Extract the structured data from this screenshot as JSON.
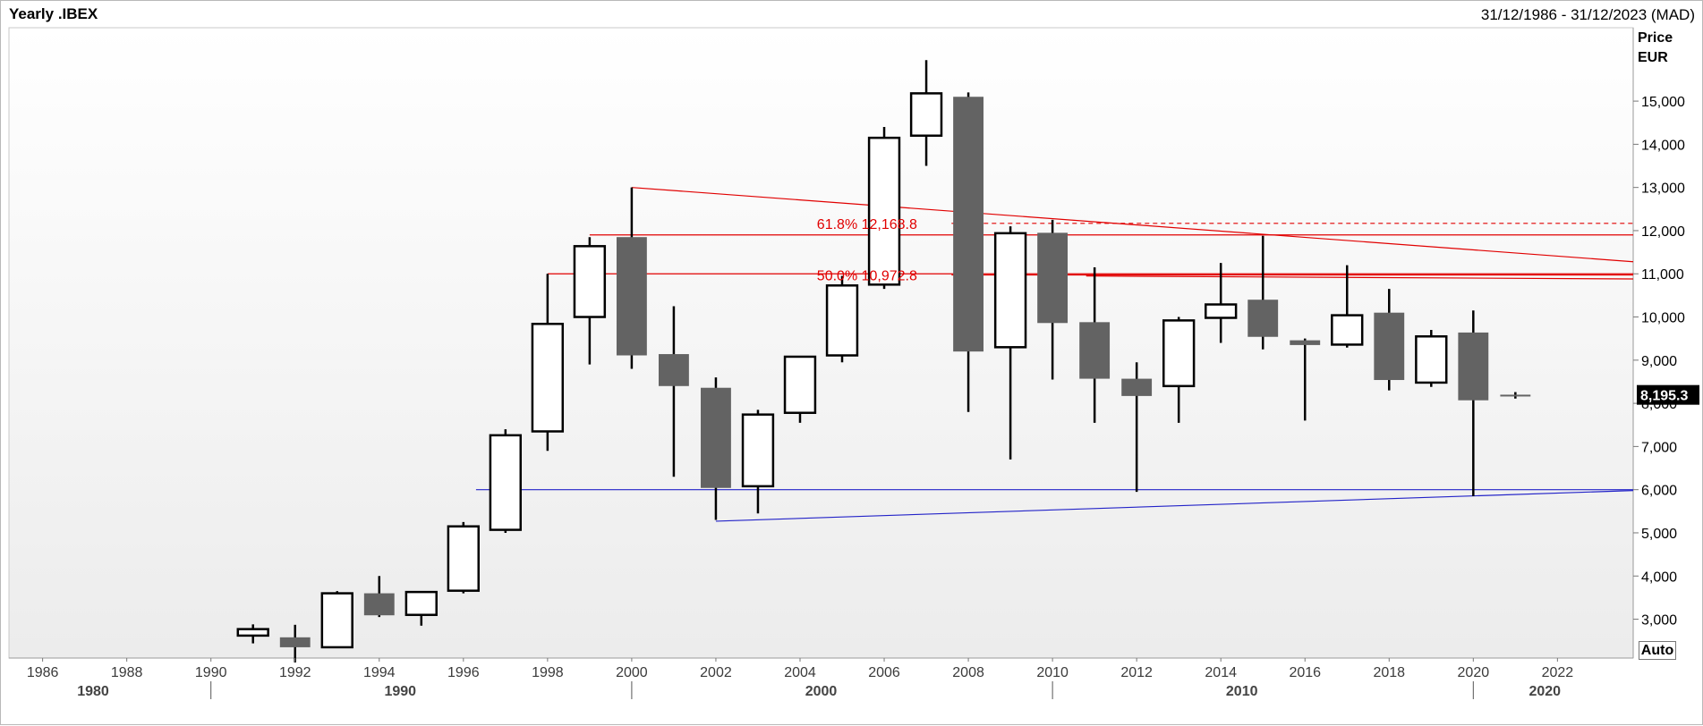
{
  "header": {
    "title": "Yearly .IBEX",
    "date_range": "31/12/1986 - 31/12/2023 (MAD)"
  },
  "axis": {
    "price_label": "Price",
    "currency_label": "EUR",
    "auto_label": "Auto"
  },
  "colors": {
    "up_fill": "#ffffff",
    "down_fill": "#636363",
    "outline": "#000000",
    "fib_line": "#e10000",
    "trend_line": "#e10000",
    "support_line": "#2323c8",
    "last_price_bg": "#000000"
  },
  "chart_data": {
    "type": "candlestick",
    "title": "Yearly .IBEX",
    "ylabel": "Price EUR",
    "ylim": [
      2100,
      16700
    ],
    "xlim": [
      1985.2,
      2023.8
    ],
    "grid": false,
    "y_ticks": [
      "3,000",
      "4,000",
      "5,000",
      "6,000",
      "7,000",
      "8,000",
      "9,000",
      "10,000",
      "11,000",
      "12,000",
      "13,000",
      "14,000",
      "15,000"
    ],
    "x_ticks": [
      "1986",
      "1988",
      "1990",
      "1992",
      "1994",
      "1996",
      "1998",
      "2000",
      "2002",
      "2004",
      "2006",
      "2008",
      "2010",
      "2012",
      "2014",
      "2016",
      "2018",
      "2020",
      "2022"
    ],
    "decade_labels": [
      "1980",
      "1990",
      "2000",
      "2010",
      "2020"
    ],
    "last_price": "8,195.3",
    "annotations": [
      {
        "label": "61.8%",
        "value": "12,168.8"
      },
      {
        "label": "50.0%",
        "value": "10,972.8"
      }
    ],
    "candles": [
      {
        "year": 1991,
        "open": 2620,
        "high": 2880,
        "low": 2440,
        "close": 2770
      },
      {
        "year": 1992,
        "open": 2580,
        "high": 2870,
        "low": 2000,
        "close": 2350
      },
      {
        "year": 1993,
        "open": 2350,
        "high": 3650,
        "low": 2330,
        "close": 3600
      },
      {
        "year": 1994,
        "open": 3600,
        "high": 4000,
        "low": 3050,
        "close": 3090
      },
      {
        "year": 1995,
        "open": 3100,
        "high": 3650,
        "low": 2850,
        "close": 3630
      },
      {
        "year": 1996,
        "open": 3660,
        "high": 5250,
        "low": 3600,
        "close": 5150
      },
      {
        "year": 1997,
        "open": 5070,
        "high": 7400,
        "low": 5000,
        "close": 7260
      },
      {
        "year": 1998,
        "open": 7350,
        "high": 11000,
        "low": 6900,
        "close": 9840
      },
      {
        "year": 1999,
        "open": 10000,
        "high": 11850,
        "low": 8900,
        "close": 11640
      },
      {
        "year": 2000,
        "open": 11850,
        "high": 13000,
        "low": 8800,
        "close": 9110
      },
      {
        "year": 2001,
        "open": 9140,
        "high": 10250,
        "low": 6300,
        "close": 8400
      },
      {
        "year": 2002,
        "open": 8360,
        "high": 8600,
        "low": 5300,
        "close": 6040
      },
      {
        "year": 2003,
        "open": 6080,
        "high": 7850,
        "low": 5450,
        "close": 7740
      },
      {
        "year": 2004,
        "open": 7780,
        "high": 9100,
        "low": 7550,
        "close": 9080
      },
      {
        "year": 2005,
        "open": 9110,
        "high": 10950,
        "low": 8950,
        "close": 10730
      },
      {
        "year": 2006,
        "open": 10750,
        "high": 14400,
        "low": 10650,
        "close": 14150
      },
      {
        "year": 2007,
        "open": 14200,
        "high": 15950,
        "low": 13500,
        "close": 15180
      },
      {
        "year": 2008,
        "open": 15100,
        "high": 15200,
        "low": 7800,
        "close": 9200
      },
      {
        "year": 2009,
        "open": 9300,
        "high": 12100,
        "low": 6700,
        "close": 11940
      },
      {
        "year": 2010,
        "open": 11950,
        "high": 12250,
        "low": 8550,
        "close": 9860
      },
      {
        "year": 2011,
        "open": 9880,
        "high": 11150,
        "low": 7550,
        "close": 8570
      },
      {
        "year": 2012,
        "open": 8570,
        "high": 8950,
        "low": 5950,
        "close": 8170
      },
      {
        "year": 2013,
        "open": 8400,
        "high": 10000,
        "low": 7550,
        "close": 9920
      },
      {
        "year": 2014,
        "open": 9980,
        "high": 11250,
        "low": 9400,
        "close": 10290
      },
      {
        "year": 2015,
        "open": 10400,
        "high": 11880,
        "low": 9250,
        "close": 9540
      },
      {
        "year": 2016,
        "open": 9460,
        "high": 9500,
        "low": 7600,
        "close": 9350
      },
      {
        "year": 2017,
        "open": 9360,
        "high": 11200,
        "low": 9290,
        "close": 10040
      },
      {
        "year": 2018,
        "open": 10100,
        "high": 10650,
        "low": 8300,
        "close": 8540
      },
      {
        "year": 2019,
        "open": 8480,
        "high": 9700,
        "low": 8380,
        "close": 9550
      },
      {
        "year": 2020,
        "open": 9640,
        "high": 10150,
        "low": 5850,
        "close": 8070
      },
      {
        "year": 2021,
        "open": 8200,
        "high": 8260,
        "low": 8110,
        "close": 8195
      }
    ],
    "lines": [
      {
        "name": "fib-61.8",
        "x1": 2007.6,
        "y1": 12168.8,
        "x2": 2023.8,
        "y2": 12168.8,
        "dashed": true,
        "color": "red"
      },
      {
        "name": "fib-50.0",
        "x1": 2007.6,
        "y1": 10972.8,
        "x2": 2023.8,
        "y2": 10972.8,
        "dashed": false,
        "color": "red"
      },
      {
        "name": "resistance-12000",
        "x1": 1999.0,
        "y1": 11900,
        "x2": 2023.8,
        "y2": 11900,
        "dashed": false,
        "color": "red"
      },
      {
        "name": "resistance-11000",
        "x1": 1998.0,
        "y1": 11000,
        "x2": 2023.8,
        "y2": 11000,
        "dashed": false,
        "color": "red"
      },
      {
        "name": "resistance-10900",
        "x1": 2010.8,
        "y1": 10950,
        "x2": 2023.8,
        "y2": 10880,
        "dashed": false,
        "color": "red"
      },
      {
        "name": "down-trendline",
        "x1": 2000.0,
        "y1": 13000,
        "x2": 2023.8,
        "y2": 11280,
        "dashed": false,
        "color": "red"
      },
      {
        "name": "support-6000",
        "x1": 1996.3,
        "y1": 6000,
        "x2": 2023.8,
        "y2": 6000,
        "dashed": false,
        "color": "blue"
      },
      {
        "name": "up-trendline",
        "x1": 2002.0,
        "y1": 5270,
        "x2": 2023.8,
        "y2": 5980,
        "dashed": false,
        "color": "blue"
      }
    ]
  }
}
